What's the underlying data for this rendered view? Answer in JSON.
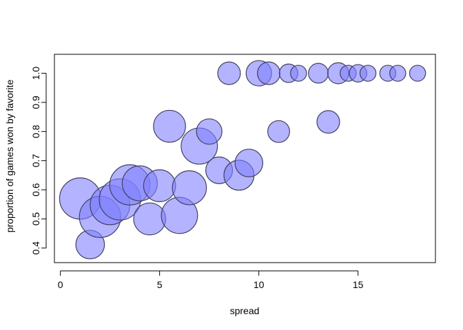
{
  "chart_data": {
    "type": "scatter",
    "title": "",
    "xlabel": "spread",
    "ylabel": "proportion of games won by favorite",
    "xlim": [
      -0.3,
      18.9
    ],
    "ylim": [
      0.35,
      1.065
    ],
    "xticks": [
      0,
      5,
      10,
      15
    ],
    "yticks": [
      0.4,
      0.5,
      0.6,
      0.7,
      0.8,
      0.9,
      1.0
    ],
    "xtick_labels": [
      "0",
      "5",
      "10",
      "15"
    ],
    "ytick_labels": [
      "0.4",
      "0.5",
      "0.6",
      "0.7",
      "0.8",
      "0.9",
      "1.0"
    ],
    "grid": false,
    "marker_fill": "#8080ff",
    "marker_fill_opacity": 0.6,
    "marker_stroke": "#404060",
    "points": [
      {
        "x": 1.0,
        "y": 0.57,
        "size": 1.0
      },
      {
        "x": 1.5,
        "y": 0.412,
        "size": 0.48
      },
      {
        "x": 2.0,
        "y": 0.507,
        "size": 1.0
      },
      {
        "x": 2.5,
        "y": 0.548,
        "size": 0.92
      },
      {
        "x": 3.0,
        "y": 0.567,
        "size": 1.0
      },
      {
        "x": 3.5,
        "y": 0.617,
        "size": 0.95
      },
      {
        "x": 4.0,
        "y": 0.622,
        "size": 0.72
      },
      {
        "x": 4.5,
        "y": 0.5,
        "size": 0.6
      },
      {
        "x": 5.0,
        "y": 0.614,
        "size": 0.6
      },
      {
        "x": 5.5,
        "y": 0.818,
        "size": 0.6
      },
      {
        "x": 6.0,
        "y": 0.512,
        "size": 0.77
      },
      {
        "x": 6.5,
        "y": 0.607,
        "size": 0.68
      },
      {
        "x": 7.0,
        "y": 0.75,
        "size": 0.77
      },
      {
        "x": 7.5,
        "y": 0.8,
        "size": 0.38
      },
      {
        "x": 8.0,
        "y": 0.667,
        "size": 0.42
      },
      {
        "x": 8.5,
        "y": 1.0,
        "size": 0.3
      },
      {
        "x": 9.0,
        "y": 0.65,
        "size": 0.53
      },
      {
        "x": 9.5,
        "y": 0.692,
        "size": 0.45
      },
      {
        "x": 10.0,
        "y": 1.0,
        "size": 0.38
      },
      {
        "x": 10.5,
        "y": 1.0,
        "size": 0.3
      },
      {
        "x": 11.0,
        "y": 0.8,
        "size": 0.28
      },
      {
        "x": 11.5,
        "y": 1.0,
        "size": 0.2
      },
      {
        "x": 12.0,
        "y": 1.0,
        "size": 0.15
      },
      {
        "x": 13.0,
        "y": 1.0,
        "size": 0.23
      },
      {
        "x": 13.5,
        "y": 0.833,
        "size": 0.3
      },
      {
        "x": 14.0,
        "y": 1.0,
        "size": 0.26
      },
      {
        "x": 14.5,
        "y": 1.0,
        "size": 0.15
      },
      {
        "x": 15.0,
        "y": 1.0,
        "size": 0.18
      },
      {
        "x": 15.5,
        "y": 1.0,
        "size": 0.15
      },
      {
        "x": 16.5,
        "y": 1.0,
        "size": 0.15
      },
      {
        "x": 17.0,
        "y": 1.0,
        "size": 0.15
      },
      {
        "x": 18.0,
        "y": 1.0,
        "size": 0.15
      }
    ]
  }
}
